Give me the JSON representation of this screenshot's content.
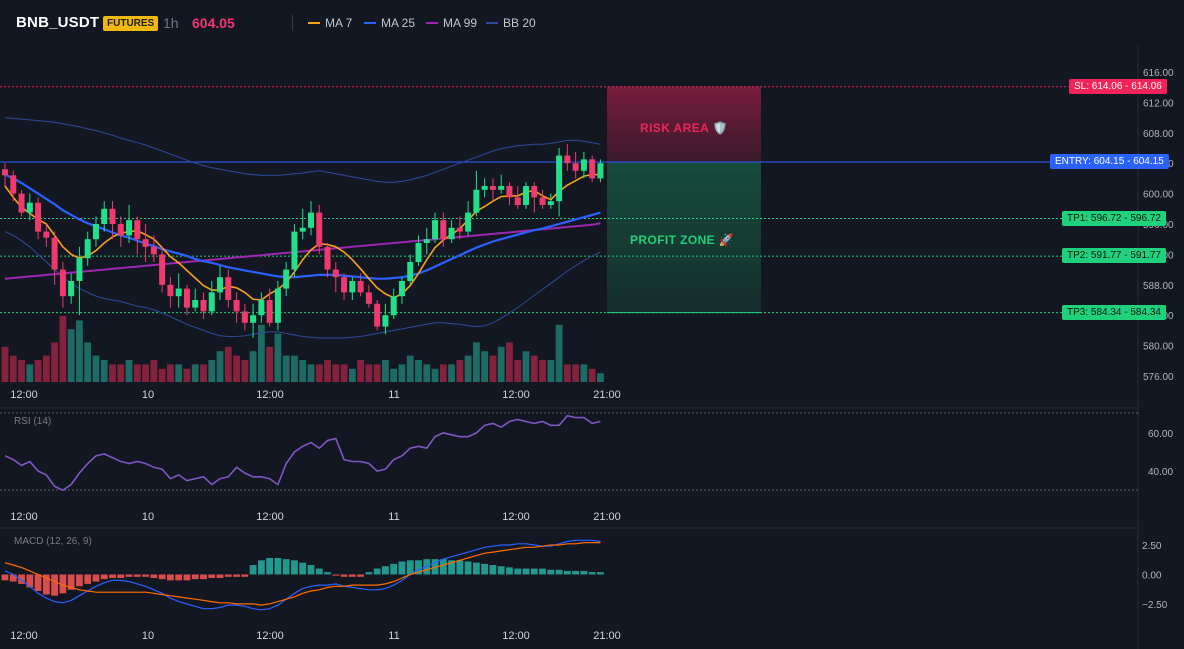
{
  "header": {
    "symbol": "BNB_USDT",
    "badge": "FUTURES",
    "timeframe": "1h",
    "price": "604.05",
    "legend": [
      {
        "label": "MA 7",
        "color": "#f7a21b"
      },
      {
        "label": "MA 25",
        "color": "#2962ff"
      },
      {
        "label": "MA 99",
        "color": "#9c27b0"
      },
      {
        "label": "BB 20",
        "color": "#2e4a9e"
      }
    ]
  },
  "colors": {
    "up": "#26a69a",
    "upBright": "#22e08a",
    "down": "#ef3a6e",
    "sl": "#f0245b",
    "tp": "#1fd17a",
    "entry": "#2962ff"
  },
  "chart_data": {
    "type": "candlestick",
    "x_ticks": [
      "12:00",
      "10",
      "12:00",
      "11",
      "12:00",
      "21:00"
    ],
    "price_axis": {
      "ticks": [
        "616.00",
        "612.00",
        "608.00",
        "604.00",
        "600.00",
        "596.00",
        "592.00",
        "588.00",
        "584.00",
        "580.00",
        "576.00"
      ],
      "range": [
        575,
        617
      ]
    },
    "candles": [
      [
        603.2,
        602.4,
        604.0,
        601.0
      ],
      [
        602.4,
        600.0,
        603.0,
        599.0
      ],
      [
        600.0,
        597.5,
        600.5,
        597.0
      ],
      [
        597.5,
        598.8,
        600.0,
        596.5
      ],
      [
        598.8,
        595.0,
        599.5,
        594.0
      ],
      [
        595.0,
        594.2,
        596.0,
        593.0
      ],
      [
        594.2,
        590.0,
        595.0,
        588.0
      ],
      [
        590.0,
        586.5,
        591.0,
        585.0
      ],
      [
        586.5,
        588.5,
        589.5,
        585.5
      ],
      [
        588.5,
        591.5,
        593.0,
        584.0
      ],
      [
        591.5,
        594.0,
        595.0,
        590.5
      ],
      [
        594.0,
        596.0,
        597.0,
        593.0
      ],
      [
        596.0,
        598.0,
        599.0,
        595.0
      ],
      [
        598.0,
        596.0,
        599.0,
        594.0
      ],
      [
        596.0,
        594.5,
        597.0,
        593.0
      ],
      [
        594.5,
        596.5,
        598.5,
        593.5
      ],
      [
        596.5,
        594.0,
        597.0,
        592.0
      ],
      [
        594.0,
        593.0,
        596.0,
        591.0
      ],
      [
        593.0,
        592.0,
        594.5,
        591.0
      ],
      [
        592.0,
        588.0,
        593.0,
        587.0
      ],
      [
        588.0,
        586.5,
        589.0,
        585.0
      ],
      [
        586.5,
        587.5,
        589.5,
        585.0
      ],
      [
        587.5,
        585.0,
        588.0,
        584.0
      ],
      [
        585.0,
        586.0,
        587.5,
        584.5
      ],
      [
        586.0,
        584.5,
        587.0,
        583.5
      ],
      [
        584.5,
        587.0,
        588.5,
        584.0
      ],
      [
        587.0,
        589.0,
        590.5,
        586.0
      ],
      [
        589.0,
        586.0,
        590.0,
        585.0
      ],
      [
        586.0,
        584.5,
        587.0,
        583.0
      ],
      [
        584.5,
        583.0,
        585.5,
        582.0
      ],
      [
        583.0,
        584.0,
        585.5,
        581.0
      ],
      [
        584.0,
        586.0,
        587.0,
        583.0
      ],
      [
        586.0,
        583.0,
        587.5,
        582.5
      ],
      [
        583.0,
        587.5,
        588.5,
        582.0
      ],
      [
        587.5,
        590.0,
        591.0,
        586.5
      ],
      [
        590.0,
        595.0,
        596.0,
        589.0
      ],
      [
        595.0,
        595.5,
        598.0,
        594.0
      ],
      [
        595.5,
        597.5,
        599.0,
        594.5
      ],
      [
        597.5,
        593.0,
        598.5,
        592.0
      ],
      [
        593.0,
        590.0,
        593.5,
        589.0
      ],
      [
        590.0,
        589.0,
        591.0,
        587.0
      ],
      [
        589.0,
        587.0,
        589.5,
        586.0
      ],
      [
        587.0,
        588.5,
        589.0,
        586.0
      ],
      [
        588.5,
        587.0,
        589.5,
        586.5
      ],
      [
        587.0,
        585.5,
        588.0,
        585.0
      ],
      [
        585.5,
        582.5,
        586.0,
        582.0
      ],
      [
        582.5,
        584.0,
        585.5,
        581.5
      ],
      [
        584.0,
        586.5,
        587.5,
        583.5
      ],
      [
        586.5,
        588.5,
        589.0,
        585.5
      ],
      [
        588.5,
        591.0,
        592.0,
        588.0
      ],
      [
        591.0,
        593.5,
        594.5,
        590.5
      ],
      [
        593.5,
        594.0,
        595.5,
        592.0
      ],
      [
        594.0,
        596.5,
        597.5,
        593.5
      ],
      [
        596.5,
        594.0,
        597.5,
        593.0
      ],
      [
        594.0,
        595.5,
        596.5,
        593.5
      ],
      [
        595.5,
        595.0,
        597.0,
        594.0
      ],
      [
        595.0,
        597.5,
        599.0,
        594.5
      ],
      [
        597.5,
        600.5,
        603.0,
        597.0
      ],
      [
        600.5,
        601.0,
        602.0,
        599.5
      ],
      [
        601.0,
        600.5,
        602.0,
        599.0
      ],
      [
        600.5,
        601.0,
        602.5,
        600.0
      ],
      [
        601.0,
        599.5,
        601.5,
        598.5
      ],
      [
        599.5,
        598.5,
        601.0,
        598.0
      ],
      [
        598.5,
        601.0,
        601.5,
        598.0
      ],
      [
        601.0,
        599.5,
        601.5,
        597.5
      ],
      [
        599.5,
        598.5,
        600.5,
        598.0
      ],
      [
        598.5,
        599.0,
        600.0,
        598.0
      ],
      [
        599.0,
        605.0,
        606.0,
        597.0
      ],
      [
        605.0,
        604.0,
        606.5,
        603.0
      ],
      [
        604.0,
        603.0,
        605.5,
        602.0
      ],
      [
        603.0,
        604.5,
        605.5,
        602.0
      ],
      [
        604.5,
        602.0,
        605.0,
        601.5
      ],
      [
        602.0,
        604.0,
        604.5,
        601.5
      ]
    ],
    "volumes": [
      8,
      6,
      5,
      4,
      5,
      6,
      9,
      15,
      12,
      14,
      9,
      6,
      5,
      4,
      4,
      5,
      4,
      4,
      5,
      3,
      4,
      4,
      3,
      4,
      4,
      5,
      7,
      8,
      6,
      5,
      7,
      13,
      8,
      11,
      6,
      6,
      5,
      4,
      4,
      5,
      4,
      4,
      3,
      5,
      4,
      4,
      5,
      3,
      4,
      6,
      5,
      4,
      3,
      4,
      4,
      5,
      6,
      9,
      7,
      6,
      8,
      9,
      5,
      7,
      6,
      5,
      5,
      13,
      4,
      4,
      4,
      3,
      2
    ],
    "ma7": [
      601.0,
      599.5,
      598.2,
      597.4,
      596.6,
      596.0,
      594.5,
      593.0,
      592.0,
      591.5,
      591.8,
      592.5,
      593.5,
      594.3,
      594.8,
      595.0,
      595.1,
      594.6,
      594.0,
      592.9,
      591.7,
      590.9,
      589.9,
      588.9,
      587.9,
      587.3,
      587.3,
      587.8,
      587.6,
      587.0,
      586.1,
      586.0,
      586.8,
      587.4,
      588.3,
      589.7,
      591.3,
      592.6,
      593.4,
      593.3,
      593.0,
      592.3,
      591.3,
      590.1,
      588.8,
      587.6,
      586.8,
      586.3,
      586.8,
      587.9,
      589.5,
      591.3,
      592.9,
      593.9,
      594.6,
      595.4,
      596.5,
      597.7,
      598.3,
      599.0,
      599.6,
      599.7,
      599.7,
      600.2,
      600.4,
      599.7,
      599.2,
      600.3,
      601.1,
      601.7,
      602.3,
      602.5,
      602.5
    ],
    "ma25": [
      602.5,
      602.0,
      601.4,
      600.7,
      600.0,
      599.3,
      598.6,
      597.8,
      597.2,
      596.6,
      596.1,
      595.7,
      595.3,
      594.9,
      594.5,
      594.2,
      593.8,
      593.4,
      593.1,
      592.7,
      592.4,
      592.1,
      591.8,
      591.4,
      591.1,
      590.9,
      590.6,
      590.3,
      590.1,
      589.9,
      589.7,
      589.5,
      589.3,
      589.1,
      589.0,
      589.0,
      589.1,
      589.2,
      589.3,
      589.3,
      589.3,
      589.2,
      589.1,
      589.0,
      588.9,
      588.8,
      588.8,
      588.9,
      589.0,
      589.2,
      589.5,
      589.9,
      590.4,
      590.9,
      591.4,
      591.9,
      592.4,
      592.9,
      593.3,
      593.7,
      594.0,
      594.3,
      594.6,
      594.9,
      595.2,
      595.4,
      595.7,
      596.0,
      596.3,
      596.6,
      596.9,
      597.2,
      597.5
    ],
    "ma99": [
      588.8,
      588.9,
      589.0,
      589.1,
      589.2,
      589.3,
      589.4,
      589.5,
      589.6,
      589.7,
      589.8,
      589.9,
      590.0,
      590.1,
      590.2,
      590.3,
      590.4,
      590.5,
      590.6,
      590.7,
      590.8,
      590.9,
      591.0,
      591.1,
      591.2,
      591.3,
      591.4,
      591.5,
      591.6,
      591.7,
      591.8,
      591.9,
      592.0,
      592.1,
      592.2,
      592.3,
      592.4,
      592.5,
      592.6,
      592.7,
      592.8,
      592.9,
      593.0,
      593.1,
      593.2,
      593.3,
      593.4,
      593.5,
      593.6,
      593.7,
      593.8,
      593.9,
      594.0,
      594.1,
      594.2,
      594.3,
      594.4,
      594.5,
      594.6,
      594.7,
      594.8,
      594.9,
      595.0,
      595.1,
      595.2,
      595.3,
      595.4,
      595.5,
      595.6,
      595.7,
      595.8,
      595.9,
      596.1
    ],
    "bb_upper": [
      610.0,
      609.9,
      609.8,
      609.7,
      609.6,
      609.5,
      609.4,
      609.2,
      609.0,
      608.8,
      608.5,
      608.3,
      608.0,
      607.7,
      607.3,
      607.0,
      606.7,
      606.4,
      606.0,
      605.6,
      605.2,
      604.8,
      604.4,
      604.0,
      603.7,
      603.4,
      603.2,
      603.0,
      602.8,
      602.6,
      602.5,
      602.4,
      602.4,
      602.4,
      602.5,
      602.6,
      602.7,
      602.9,
      603.0,
      602.8,
      602.6,
      602.4,
      602.2,
      602.0,
      601.8,
      601.6,
      601.5,
      601.5,
      601.6,
      601.8,
      602.1,
      602.4,
      602.8,
      603.2,
      603.6,
      604.0,
      604.4,
      604.8,
      605.2,
      605.6,
      605.9,
      606.1,
      606.3,
      606.4,
      606.5,
      606.5,
      606.6,
      606.8,
      607.0,
      607.0,
      606.9,
      606.7,
      606.5
    ],
    "bb_lower": [
      595.0,
      594.5,
      593.8,
      593.0,
      592.0,
      591.0,
      590.0,
      589.0,
      588.2,
      587.5,
      587.0,
      586.5,
      586.2,
      586.0,
      585.8,
      585.5,
      585.2,
      585.0,
      584.7,
      584.3,
      583.8,
      583.3,
      582.8,
      582.4,
      582.0,
      581.6,
      581.3,
      581.2,
      581.2,
      581.3,
      581.5,
      581.7,
      581.8,
      581.8,
      581.6,
      581.4,
      581.2,
      581.1,
      581.0,
      581.0,
      581.0,
      581.0,
      581.1,
      581.2,
      581.4,
      581.6,
      581.8,
      582.0,
      582.2,
      582.4,
      582.6,
      582.8,
      583.0,
      583.0,
      582.9,
      582.8,
      582.6,
      582.5,
      582.6,
      583.0,
      583.6,
      584.3,
      585.0,
      585.8,
      586.6,
      587.4,
      588.2,
      589.0,
      589.8,
      590.5,
      591.2,
      591.8,
      592.3
    ],
    "levels": {
      "sl": {
        "value": 614.06,
        "label": "SL: 614.06 - 614.06"
      },
      "entry": {
        "value": 604.15,
        "label": "ENTRY: 604.15 - 604.15"
      },
      "tp1": {
        "value": 596.72,
        "label": "TP1: 596.72 - 596.72"
      },
      "tp2": {
        "value": 591.77,
        "label": "TP2: 591.77 - 591.77"
      },
      "tp3": {
        "value": 584.34,
        "label": "TP3: 584.34 - 584.34"
      }
    },
    "zones": {
      "risk_label": "RISK AREA 🛡️",
      "profit_label": "PROFIT ZONE 🚀"
    },
    "rsi": {
      "label": "RSI (14)",
      "ticks": [
        "60.00",
        "40.00"
      ],
      "range": [
        28,
        72
      ],
      "values": [
        48,
        46,
        43,
        45,
        40,
        38,
        32,
        30,
        33,
        39,
        44,
        48,
        49,
        47,
        45,
        44,
        45,
        44,
        42,
        41,
        36,
        38,
        35,
        36,
        37,
        33,
        36,
        37,
        42,
        39,
        37,
        37,
        36,
        33,
        44,
        50,
        53,
        55,
        52,
        56,
        57,
        46,
        45,
        45,
        44,
        40,
        41,
        46,
        48,
        52,
        53,
        52,
        58,
        60,
        59,
        58,
        58,
        60,
        64,
        65,
        63,
        66,
        67,
        66,
        65,
        66,
        64,
        64,
        69,
        68,
        68,
        65,
        66
      ]
    },
    "macd": {
      "label": "MACD (12, 26, 9)",
      "ticks": [
        "2.50",
        "0.00",
        "−2.50"
      ],
      "range": [
        -4.2,
        3.6
      ],
      "macd": [
        0.3,
        0.0,
        -0.5,
        -1.0,
        -1.6,
        -2.0,
        -2.3,
        -2.4,
        -2.2,
        -1.8,
        -1.4,
        -1.0,
        -0.7,
        -0.5,
        -0.5,
        -0.6,
        -0.8,
        -1.0,
        -1.3,
        -1.6,
        -2.0,
        -2.3,
        -2.5,
        -2.7,
        -2.9,
        -2.9,
        -2.8,
        -2.6,
        -2.6,
        -2.7,
        -2.9,
        -3.0,
        -2.9,
        -2.6,
        -2.1,
        -1.6,
        -1.2,
        -1.0,
        -0.9,
        -0.9,
        -0.8,
        -1.0,
        -1.1,
        -1.2,
        -1.3,
        -1.3,
        -1.2,
        -0.9,
        -0.5,
        0.0,
        0.4,
        0.7,
        1.0,
        1.3,
        1.5,
        1.7,
        1.9,
        2.1,
        2.3,
        2.4,
        2.5,
        2.5,
        2.6,
        2.6,
        2.5,
        2.4,
        2.4,
        2.6,
        2.8,
        2.9,
        2.9,
        2.9,
        2.8
      ],
      "signal": [
        1.0,
        0.8,
        0.6,
        0.3,
        0.0,
        -0.3,
        -0.6,
        -0.9,
        -1.1,
        -1.3,
        -1.4,
        -1.5,
        -1.5,
        -1.5,
        -1.5,
        -1.5,
        -1.5,
        -1.5,
        -1.6,
        -1.7,
        -1.8,
        -1.9,
        -2.0,
        -2.1,
        -2.2,
        -2.3,
        -2.4,
        -2.4,
        -2.5,
        -2.5,
        -2.5,
        -2.6,
        -2.5,
        -2.3,
        -2.1,
        -1.9,
        -1.6,
        -1.4,
        -1.3,
        -1.1,
        -1.0,
        -1.0,
        -0.9,
        -0.9,
        -0.9,
        -0.9,
        -0.8,
        -0.6,
        -0.3,
        0.0,
        0.2,
        0.4,
        0.6,
        0.8,
        1.0,
        1.2,
        1.4,
        1.6,
        1.8,
        1.9,
        2.0,
        2.1,
        2.2,
        2.3,
        2.3,
        2.4,
        2.5,
        2.5,
        2.6,
        2.6,
        2.7,
        2.7,
        2.7
      ],
      "hist": [
        -0.5,
        -0.6,
        -0.8,
        -1.1,
        -1.4,
        -1.7,
        -1.8,
        -1.6,
        -1.3,
        -1.0,
        -0.8,
        -0.6,
        -0.4,
        -0.3,
        -0.3,
        -0.2,
        -0.2,
        -0.2,
        -0.3,
        -0.4,
        -0.5,
        -0.5,
        -0.5,
        -0.4,
        -0.4,
        -0.3,
        -0.3,
        -0.2,
        -0.2,
        -0.2,
        0.8,
        1.2,
        1.4,
        1.4,
        1.3,
        1.2,
        1.0,
        0.8,
        0.5,
        0.2,
        -0.1,
        -0.2,
        -0.2,
        -0.2,
        0.2,
        0.5,
        0.7,
        0.9,
        1.1,
        1.2,
        1.2,
        1.3,
        1.3,
        1.3,
        1.2,
        1.2,
        1.1,
        1.0,
        0.9,
        0.8,
        0.7,
        0.6,
        0.5,
        0.5,
        0.5,
        0.5,
        0.4,
        0.4,
        0.3,
        0.3,
        0.3,
        0.2,
        0.2
      ]
    }
  }
}
